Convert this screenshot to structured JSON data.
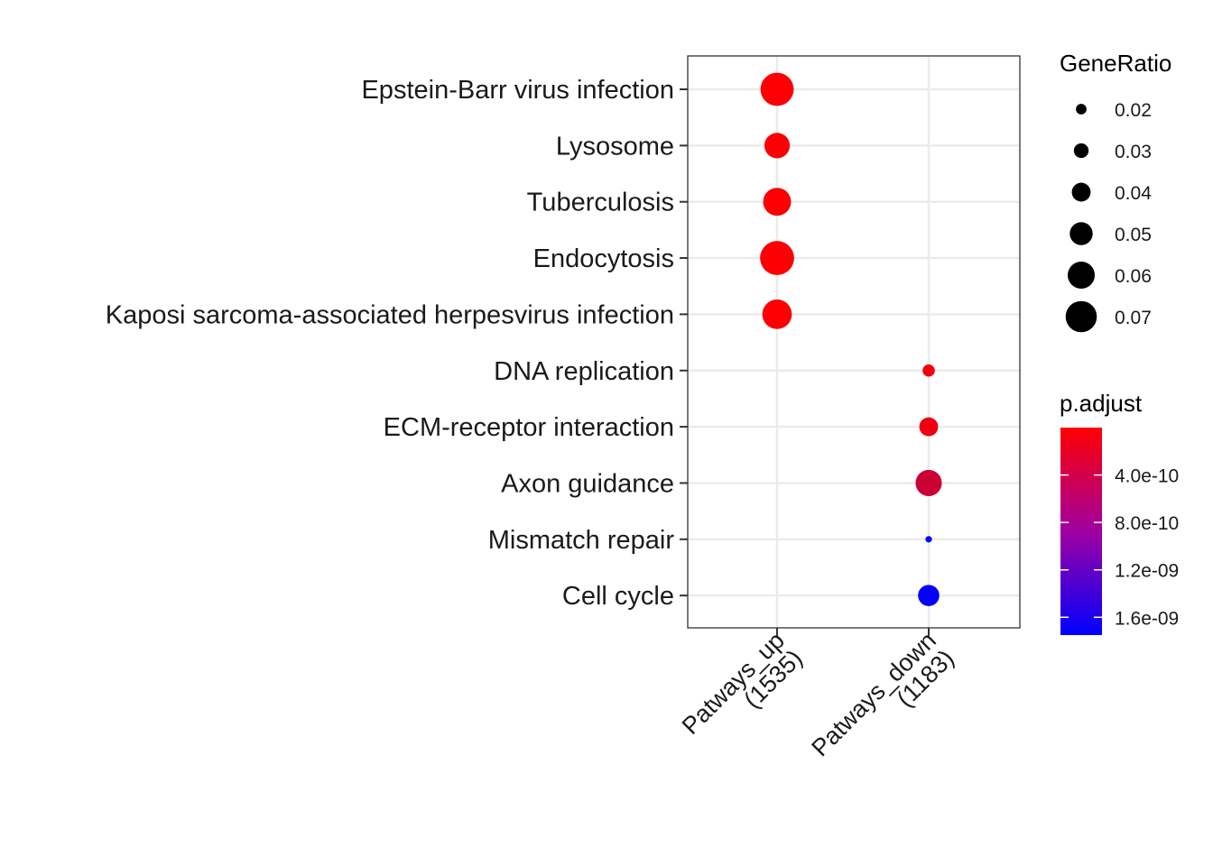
{
  "chart_data": {
    "type": "scatter",
    "title": "",
    "xlabel": "",
    "ylabel": "",
    "categories_x": [
      {
        "line1": "Patways_up",
        "line2": "(1535)"
      },
      {
        "line1": "Patways_down",
        "line2": "(1183)"
      }
    ],
    "categories_y": [
      "Epstein-Barr virus infection",
      "Lysosome",
      "Tuberculosis",
      "Endocytosis",
      "Kaposi sarcoma-associated herpesvirus infection",
      "DNA replication",
      "ECM-receptor interaction",
      "Axon guidance",
      "Mismatch repair",
      "Cell cycle"
    ],
    "points": [
      {
        "x": "Patways_up",
        "y": "Epstein-Barr virus infection",
        "gene_ratio": 0.075,
        "p_adjust": 2e-11
      },
      {
        "x": "Patways_up",
        "y": "Lysosome",
        "gene_ratio": 0.056,
        "p_adjust": 2e-11
      },
      {
        "x": "Patways_up",
        "y": "Tuberculosis",
        "gene_ratio": 0.062,
        "p_adjust": 2e-11
      },
      {
        "x": "Patways_up",
        "y": "Endocytosis",
        "gene_ratio": 0.077,
        "p_adjust": 2e-11
      },
      {
        "x": "Patways_up",
        "y": "Kaposi sarcoma-associated herpesvirus infection",
        "gene_ratio": 0.066,
        "p_adjust": 2e-11
      },
      {
        "x": "Patways_down",
        "y": "DNA replication",
        "gene_ratio": 0.024,
        "p_adjust": 8e-11
      },
      {
        "x": "Patways_down",
        "y": "ECM-receptor interaction",
        "gene_ratio": 0.04,
        "p_adjust": 1.2e-10
      },
      {
        "x": "Patways_down",
        "y": "Axon guidance",
        "gene_ratio": 0.058,
        "p_adjust": 3.6e-10
      },
      {
        "x": "Patways_down",
        "y": "Mismatch repair",
        "gene_ratio": 0.01,
        "p_adjust": 1.75e-09
      },
      {
        "x": "Patways_down",
        "y": "Cell cycle",
        "gene_ratio": 0.046,
        "p_adjust": 1.7e-09
      }
    ],
    "size_legend": {
      "title": "GeneRatio",
      "items": [
        {
          "label": "0.02",
          "value": 0.02
        },
        {
          "label": "0.03",
          "value": 0.03
        },
        {
          "label": "0.04",
          "value": 0.04
        },
        {
          "label": "0.05",
          "value": 0.05
        },
        {
          "label": "0.06",
          "value": 0.06
        },
        {
          "label": "0.07",
          "value": 0.07
        }
      ]
    },
    "color_legend": {
      "title": "p.adjust",
      "range": [
        0,
        1.75e-09
      ],
      "low_color": "#ff0000",
      "high_color": "#0000ff",
      "ticks": [
        {
          "label": "4.0e-10",
          "value": 4e-10
        },
        {
          "label": "8.0e-10",
          "value": 8e-10
        },
        {
          "label": "1.2e-09",
          "value": 1.2e-09
        },
        {
          "label": "1.6e-09",
          "value": 1.6e-09
        }
      ]
    },
    "grid": true,
    "legend_position": "right"
  }
}
